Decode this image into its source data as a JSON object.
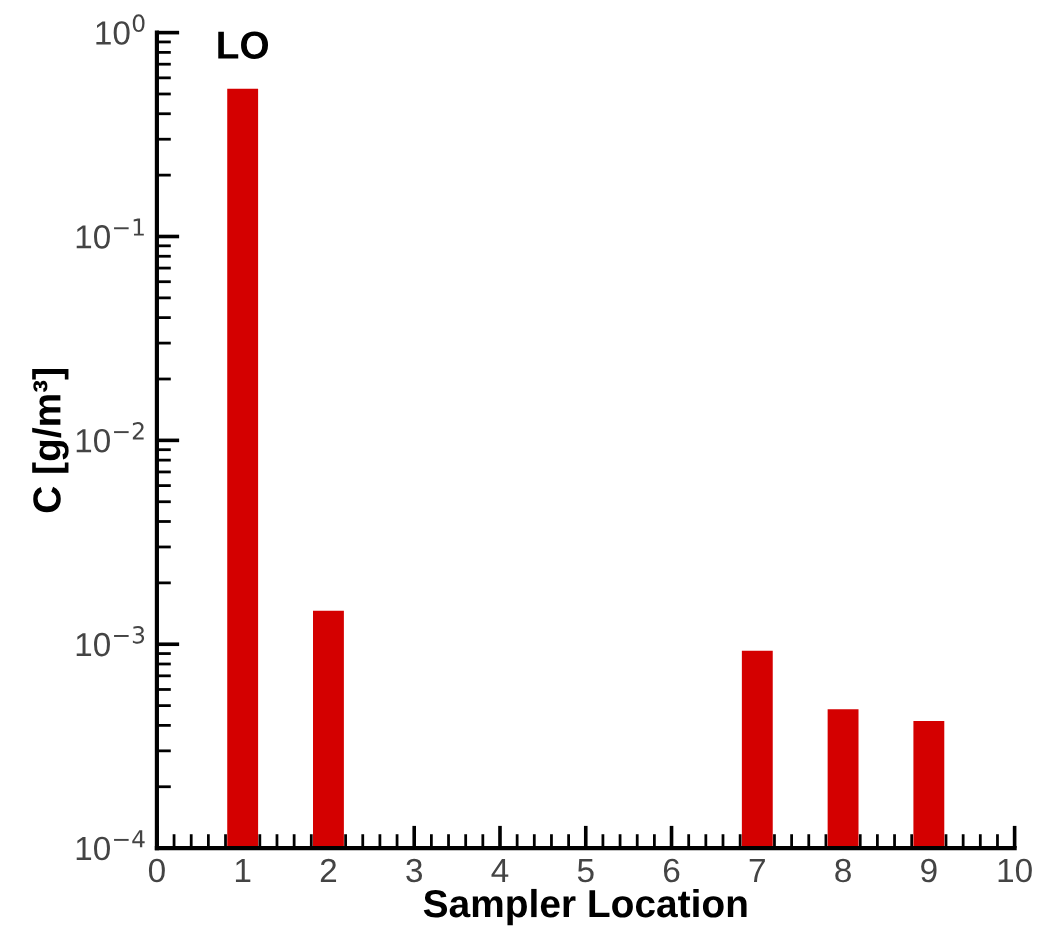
{
  "chart_data": {
    "type": "bar",
    "xlabel": "Sampler Location",
    "ylabel": "C [g/m³]",
    "x": [
      1,
      2,
      7,
      8,
      9
    ],
    "values": [
      0.53,
      0.00146,
      0.00093,
      0.00048,
      0.00042
    ],
    "color": "#d40000",
    "log": "y",
    "grid": false,
    "legend": false,
    "xlim": [
      0,
      10
    ],
    "xticks": [
      0,
      1,
      2,
      3,
      4,
      5,
      6,
      7,
      8,
      9,
      10
    ],
    "ylim": [
      0.0001,
      1
    ],
    "yticks": [
      {
        "value": 0.0001,
        "label": "10$^{−4}$"
      },
      {
        "value": 0.001,
        "label": "10$^{−3}$"
      },
      {
        "value": 0.01,
        "label": "10$^{−2}$"
      },
      {
        "value": 0.1,
        "label": "10$^{−1}$"
      },
      {
        "value": 1,
        "label": "10$^{0}$"
      }
    ],
    "annotations": [
      {
        "text": "LO",
        "x": 1,
        "y": 0.53
      }
    ]
  }
}
